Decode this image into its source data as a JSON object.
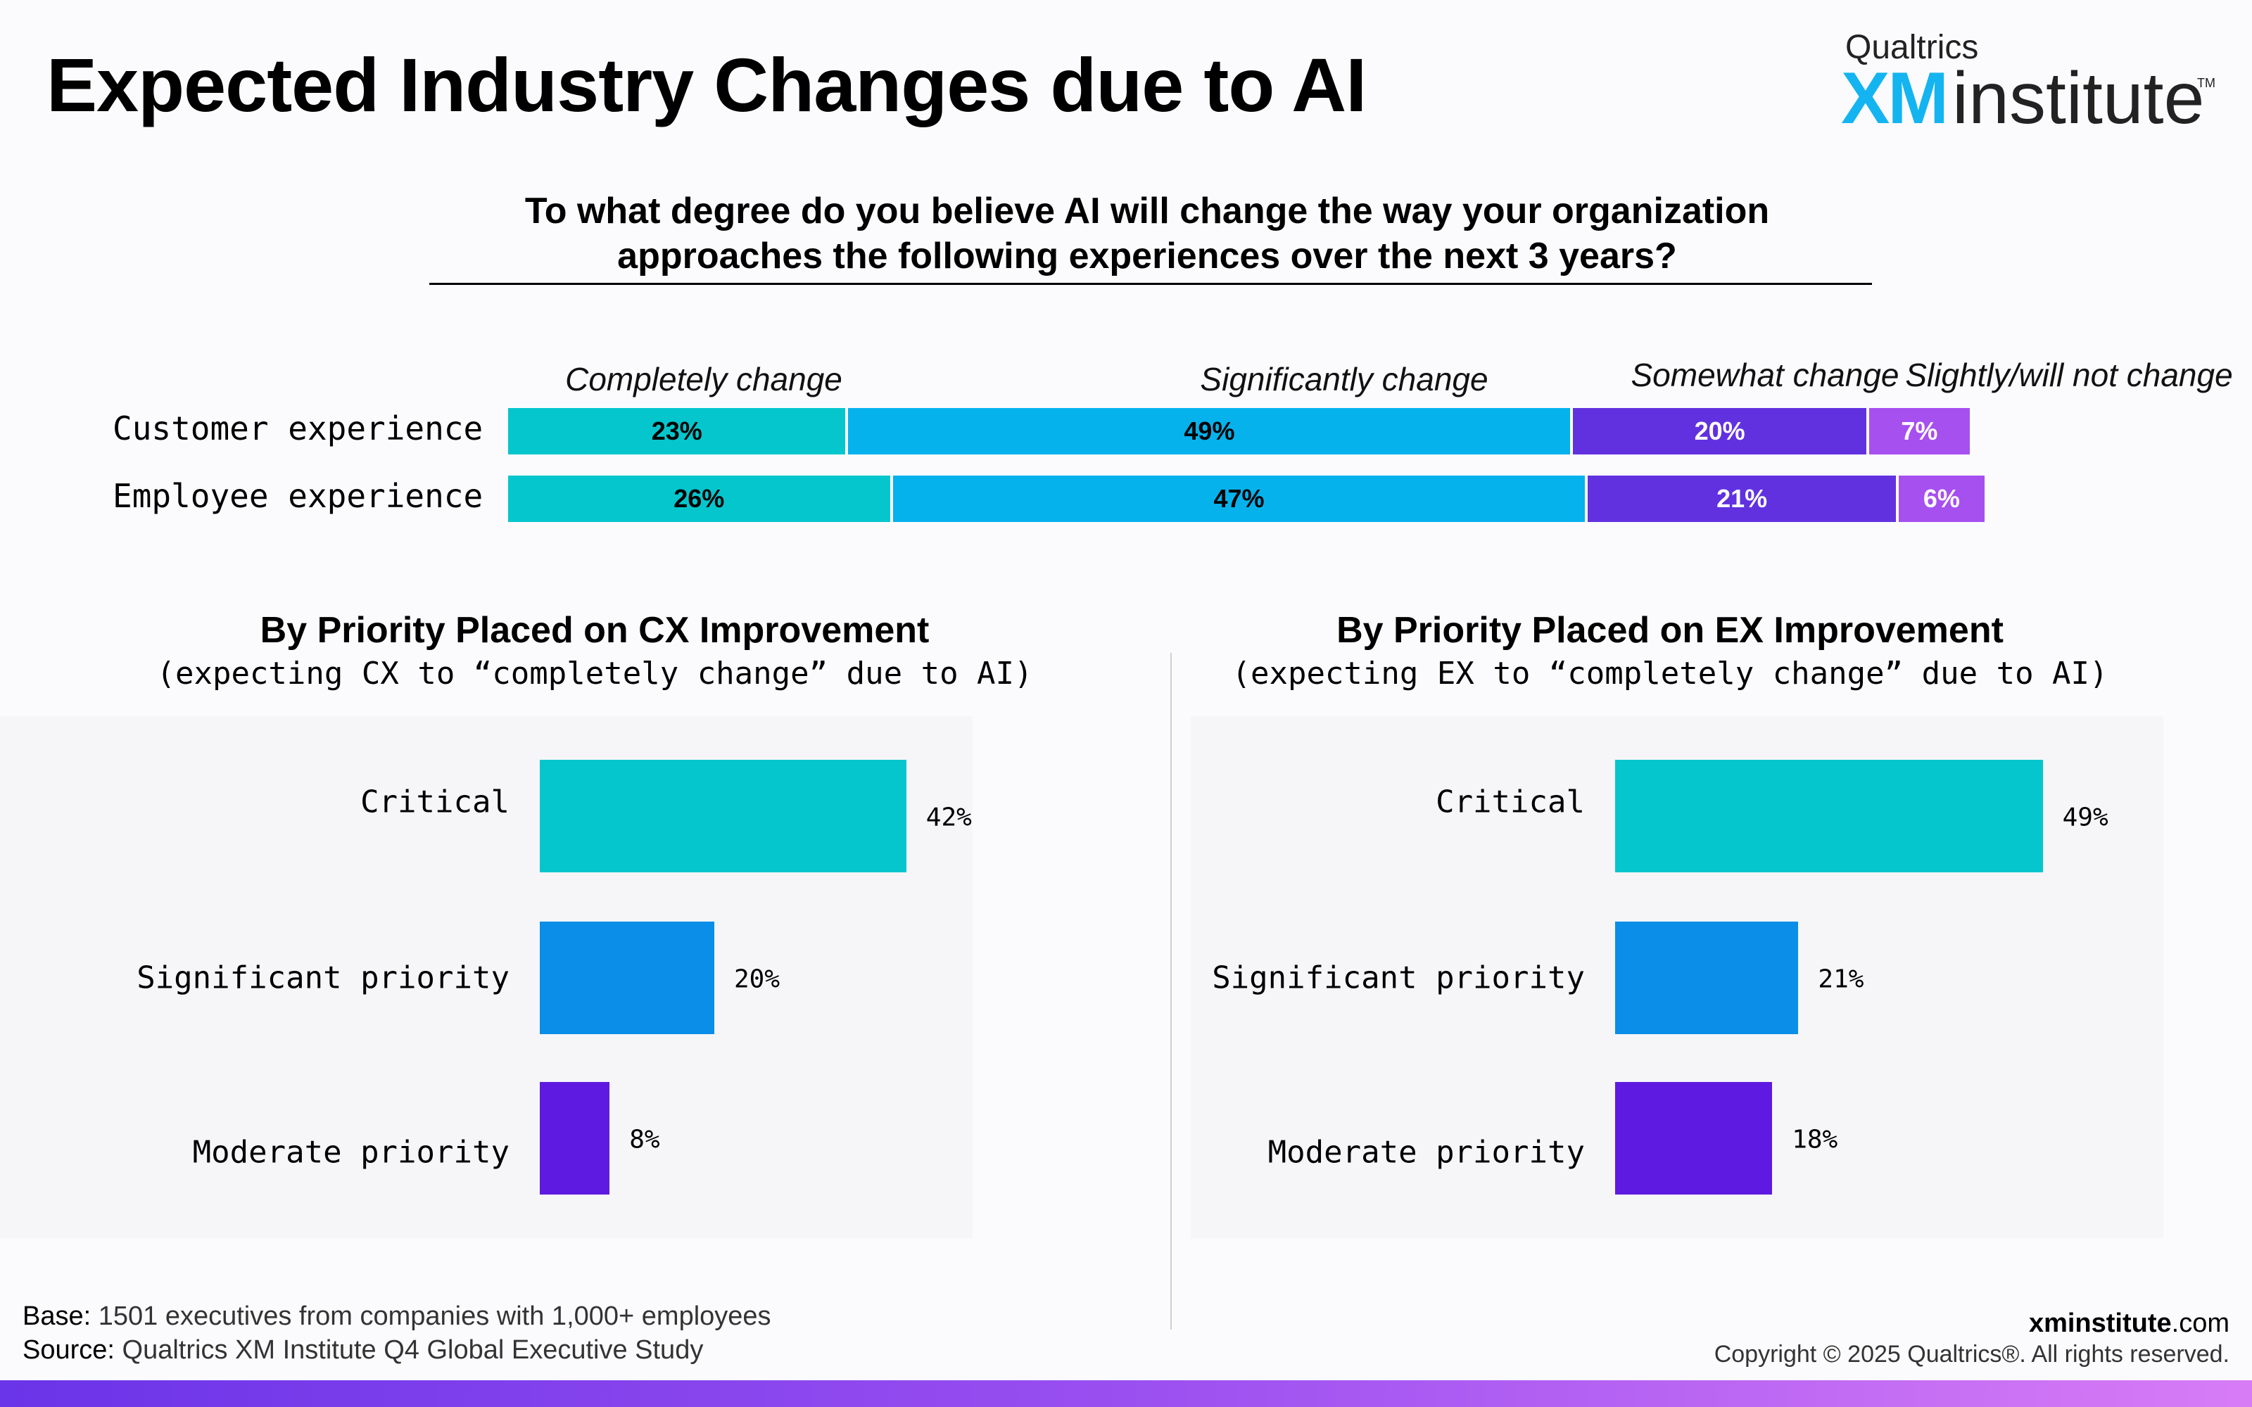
{
  "header": {
    "title": "Expected Industry Changes due to AI",
    "logo": {
      "top": "Qualtrics",
      "xm": "XM",
      "institute": "institute",
      "tm": "TM"
    }
  },
  "colors": {
    "completely": "#05c6cc",
    "significantly": "#05b2ec",
    "somewhat": "#6131e0",
    "slightly": "#a650f0",
    "critical": "#05c6cc",
    "significant": "#0a8ee8",
    "moderate": "#5e1ae0"
  },
  "chart_data": [
    {
      "type": "bar",
      "stacked": true,
      "orientation": "horizontal",
      "title": "To what degree do you believe AI will change the way your organization approaches the following experiences over the next 3 years?",
      "categories": [
        "Customer experience",
        "Employee experience"
      ],
      "series": [
        {
          "name": "Completely change",
          "values": [
            23,
            26
          ],
          "labels": [
            "23%",
            "26%"
          ]
        },
        {
          "name": "Significantly change",
          "values": [
            49,
            47
          ],
          "labels": [
            "49%",
            "47%"
          ]
        },
        {
          "name": "Somewhat change",
          "values": [
            20,
            21
          ],
          "labels": [
            "20%",
            "21%"
          ]
        },
        {
          "name": "Slightly/will not change",
          "values": [
            7,
            6
          ],
          "labels": [
            "7%",
            "6%"
          ]
        }
      ]
    },
    {
      "type": "bar",
      "orientation": "horizontal",
      "title": "By Priority Placed on CX Improvement",
      "subtitle": "(expecting CX to “completely change” due to AI)",
      "categories": [
        "Critical",
        "Significant priority",
        "Moderate priority"
      ],
      "values": [
        42,
        20,
        8
      ],
      "labels": [
        "42%",
        "20%",
        "8%"
      ]
    },
    {
      "type": "bar",
      "orientation": "horizontal",
      "title": "By Priority Placed on EX Improvement",
      "subtitle": "(expecting EX to “completely change” due to AI)",
      "categories": [
        "Critical",
        "Significant priority",
        "Moderate priority"
      ],
      "values": [
        49,
        21,
        18
      ],
      "labels": [
        "49%",
        "21%",
        "18%"
      ]
    }
  ],
  "footer": {
    "base_label": "Base:",
    "base_text": "1501 executives from companies with 1,000+ employees",
    "source_label": "Source:",
    "source_text": "Qualtrics XM Institute Q4 Global Executive Study",
    "site_bold": "xminstitute",
    "site_rest": ".com",
    "copyright": "Copyright © 2025 Qualtrics®. All rights reserved."
  }
}
